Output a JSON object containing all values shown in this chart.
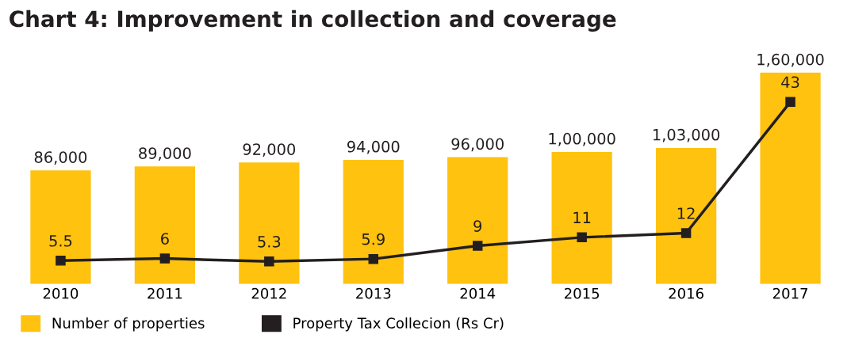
{
  "chart_data": {
    "type": "bar",
    "title": "Chart 4: Improvement in collection and coverage",
    "categories": [
      "2010",
      "2011",
      "2012",
      "2013",
      "2014",
      "2015",
      "2016",
      "2017"
    ],
    "series": [
      {
        "name": "Number of properties",
        "color": "#ffc20e",
        "values": [
          86000,
          89000,
          92000,
          94000,
          96000,
          100000,
          103000,
          160000
        ],
        "value_labels": [
          "86,000",
          "89,000",
          "92,000",
          "94,000",
          "96,000",
          "1,00,000",
          "1,03,000",
          "1,60,000"
        ]
      },
      {
        "name": "Property Tax Collecion (Rs Cr)",
        "type": "line",
        "axis": "y2",
        "color": "#231f20",
        "marker": "square",
        "values": [
          5.5,
          6,
          5.3,
          5.9,
          9,
          11,
          12,
          43
        ],
        "value_labels": [
          "5.5",
          "6",
          "5.3",
          "5.9",
          "9",
          "11",
          "12",
          "43"
        ]
      }
    ],
    "tick_labels": "x",
    "legend": "bottom left",
    "grid": false
  }
}
